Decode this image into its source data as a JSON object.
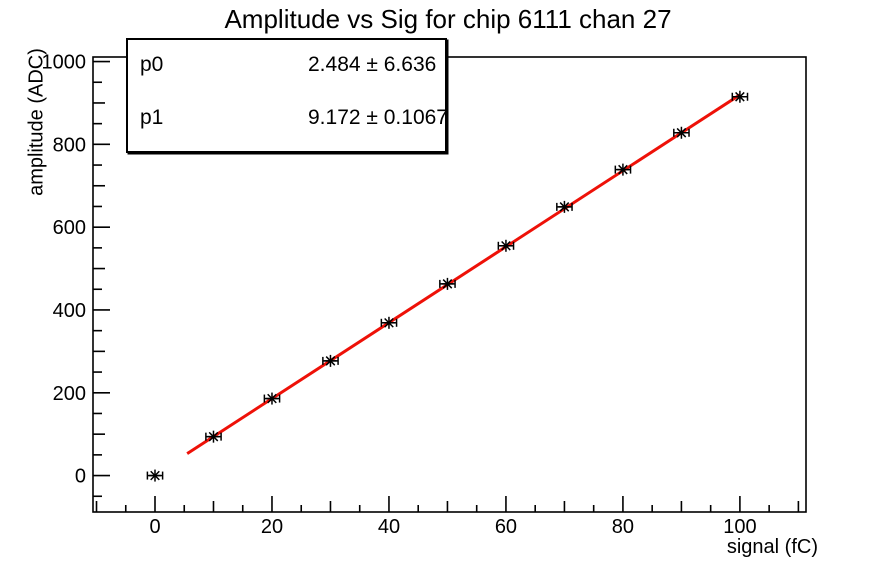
{
  "chart_data": {
    "type": "scatter",
    "title": "Amplitude vs Sig for chip 6111 chan 27",
    "xlabel": "signal (fC)",
    "ylabel": "amplitude (ADC)",
    "xlim": [
      -10.6,
      111.3
    ],
    "ylim": [
      -88,
      1011
    ],
    "grid": false,
    "legend": "none",
    "x": [
      0,
      10,
      20,
      30,
      40,
      50,
      60,
      70,
      80,
      90,
      100
    ],
    "y": [
      0,
      94,
      186,
      277,
      369,
      463,
      555,
      649,
      739,
      828,
      915
    ],
    "x_err": 1.3,
    "x_ticks": [
      0,
      20,
      40,
      60,
      80,
      100
    ],
    "y_ticks": [
      0,
      200,
      400,
      600,
      800,
      1000
    ],
    "x_minor_step": 5,
    "y_minor_step": 50,
    "marker": "asterisk-with-x-error-bars",
    "marker_color": "#000000",
    "fit": {
      "type": "linear",
      "p0": 2.484,
      "p0_err": 6.636,
      "p1": 9.172,
      "p1_err": 0.1067,
      "x_range": [
        5.5,
        100
      ],
      "color": "#ee1108",
      "rows": [
        {
          "label": "p0",
          "value": "2.484 ± 6.636"
        },
        {
          "label": "p1",
          "value": "9.172 ± 0.1067"
        }
      ]
    }
  }
}
